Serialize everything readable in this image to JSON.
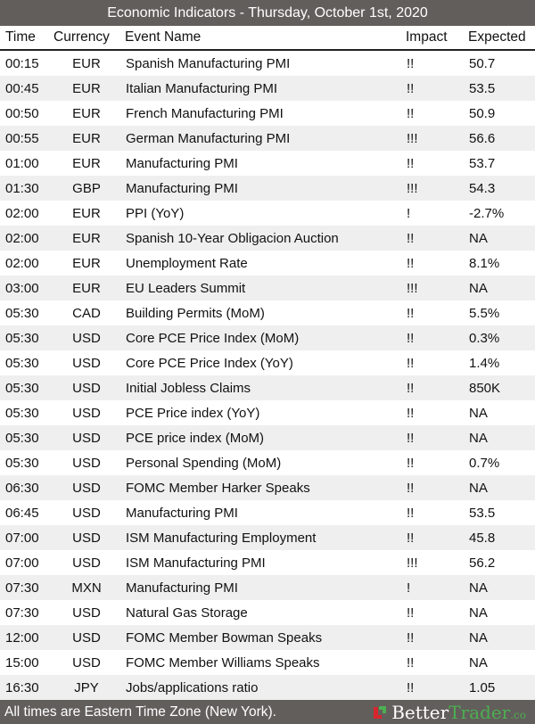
{
  "title": "Economic Indicators - Thursday, October 1st, 2020",
  "columns": {
    "time": "Time",
    "currency": "Currency",
    "event": "Event Name",
    "impact": "Impact",
    "expected": "Expected"
  },
  "rows": [
    [
      "00:15",
      "EUR",
      "Spanish Manufacturing PMI",
      "!!",
      "50.7"
    ],
    [
      "00:45",
      "EUR",
      "Italian Manufacturing PMI",
      "!!",
      "53.5"
    ],
    [
      "00:50",
      "EUR",
      "French Manufacturing PMI",
      "!!",
      "50.9"
    ],
    [
      "00:55",
      "EUR",
      "German Manufacturing PMI",
      "!!!",
      "56.6"
    ],
    [
      "01:00",
      "EUR",
      "Manufacturing PMI",
      "!!",
      "53.7"
    ],
    [
      "01:30",
      "GBP",
      "Manufacturing PMI",
      "!!!",
      "54.3"
    ],
    [
      "02:00",
      "EUR",
      "PPI (YoY)",
      "!",
      "-2.7%"
    ],
    [
      "02:00",
      "EUR",
      "Spanish 10-Year Obligacion Auction",
      "!!",
      "NA"
    ],
    [
      "02:00",
      "EUR",
      "Unemployment Rate",
      "!!",
      "8.1%"
    ],
    [
      "03:00",
      "EUR",
      "EU Leaders Summit",
      "!!!",
      "NA"
    ],
    [
      "05:30",
      "CAD",
      "Building Permits (MoM)",
      "!!",
      "5.5%"
    ],
    [
      "05:30",
      "USD",
      "Core PCE Price Index (MoM)",
      "!!",
      "0.3%"
    ],
    [
      "05:30",
      "USD",
      "Core PCE Price Index (YoY)",
      "!!",
      "1.4%"
    ],
    [
      "05:30",
      "USD",
      "Initial Jobless Claims",
      "!!",
      "850K"
    ],
    [
      "05:30",
      "USD",
      "PCE Price index (YoY)",
      "!!",
      "NA"
    ],
    [
      "05:30",
      "USD",
      "PCE price index (MoM)",
      "!!",
      "NA"
    ],
    [
      "05:30",
      "USD",
      "Personal Spending (MoM)",
      "!!",
      "0.7%"
    ],
    [
      "06:30",
      "USD",
      "FOMC Member Harker Speaks",
      "!!",
      "NA"
    ],
    [
      "06:45",
      "USD",
      "Manufacturing PMI",
      "!!",
      "53.5"
    ],
    [
      "07:00",
      "USD",
      "ISM Manufacturing Employment",
      "!!",
      "45.8"
    ],
    [
      "07:00",
      "USD",
      "ISM Manufacturing PMI",
      "!!!",
      "56.2"
    ],
    [
      "07:30",
      "MXN",
      "Manufacturing PMI",
      "!",
      "NA"
    ],
    [
      "07:30",
      "USD",
      "Natural Gas Storage",
      "!!",
      "NA"
    ],
    [
      "12:00",
      "USD",
      "FOMC Member Bowman Speaks",
      "!!",
      "NA"
    ],
    [
      "15:00",
      "USD",
      "FOMC Member Williams Speaks",
      "!!",
      "NA"
    ],
    [
      "16:30",
      "JPY",
      "Jobs/applications ratio",
      "!!",
      "1.05"
    ]
  ],
  "footer": {
    "note": "All times are Eastern Time Zone (New York).",
    "logo": {
      "better": "Better",
      "trader": "Trader",
      "co": ".co"
    }
  },
  "colors": {
    "bar": "#625e5c",
    "stripe": "#efefef",
    "brand_green": "#4caf50",
    "brand_red": "#d7262e"
  }
}
